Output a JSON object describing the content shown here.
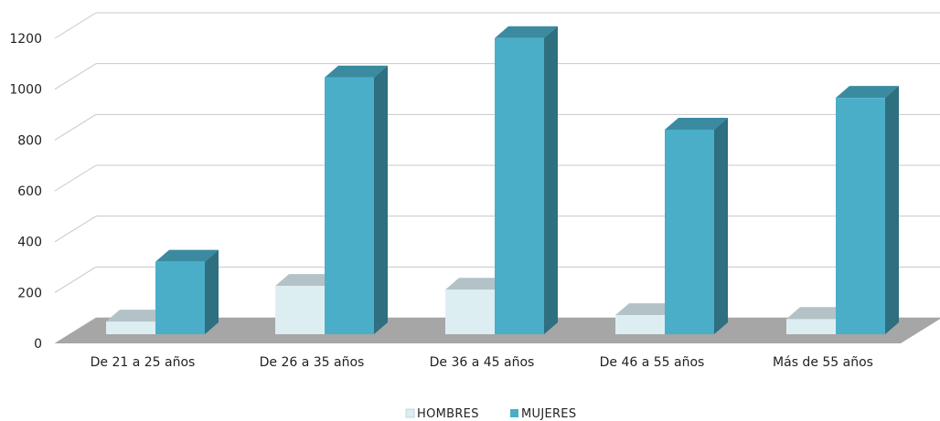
{
  "chart_data": {
    "type": "bar",
    "categories": [
      "De 21 a 25 años",
      "De 26 a 35 años",
      "De 36 a 45 años",
      "De 46 a 55 años",
      "Más de 55 años"
    ],
    "series": [
      {
        "name": "HOMBRES",
        "values": [
          50,
          190,
          175,
          75,
          60
        ],
        "color": "#ddeef3"
      },
      {
        "name": "MUJERES",
        "values": [
          285,
          1010,
          1165,
          805,
          930
        ],
        "color": "#4aaec8"
      }
    ],
    "ylim": [
      0,
      1200
    ],
    "yticks": [
      "0",
      "200",
      "400",
      "600",
      "800",
      "1000",
      "1200"
    ],
    "grid": true,
    "legend_position": "bottom",
    "floor_color": "#a6a6a6"
  }
}
